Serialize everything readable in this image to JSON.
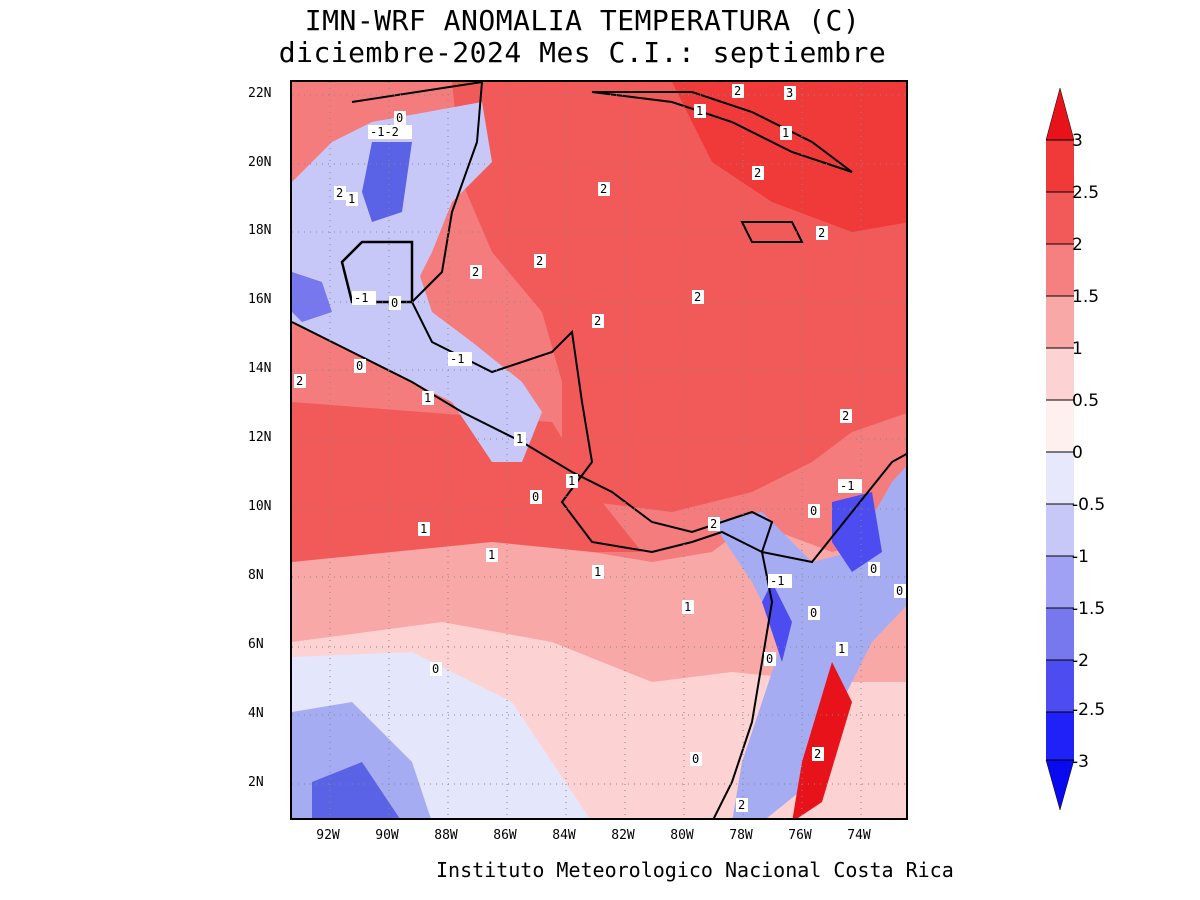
{
  "title": {
    "line1": "IMN-WRF  ANOMALIA TEMPERATURA (C)",
    "line2": "diciembre-2024 Mes C.I.: septiembre"
  },
  "footer": "Instituto Meteorologico Nacional Costa Rica",
  "map": {
    "lat_labels": [
      "22N",
      "20N",
      "18N",
      "16N",
      "14N",
      "12N",
      "10N",
      "8N",
      "6N",
      "4N",
      "2N"
    ],
    "lon_labels": [
      "92W",
      "90W",
      "88W",
      "86W",
      "84W",
      "82W",
      "80W",
      "78W",
      "76W",
      "74W"
    ],
    "contour_labels": [
      "0",
      "-1-2",
      "2",
      "1",
      "2",
      "1",
      "2",
      "3",
      "1",
      "2",
      "2",
      "2",
      "2",
      "-1",
      "0",
      "2",
      "0",
      "-1",
      "2",
      "1",
      "1",
      "2",
      "1",
      "0",
      "-1",
      "1",
      "2",
      "0",
      "1",
      "1",
      "0",
      "-1",
      "0",
      "0",
      "1",
      "0",
      "2",
      "0",
      "0",
      "2",
      "1",
      "2"
    ]
  },
  "colorbar": {
    "labels": [
      "3",
      "2.5",
      "2",
      "1.5",
      "1",
      "0.5",
      "0",
      "-0.5",
      "-1",
      "-1.5",
      "-2",
      "-2.5",
      "-3"
    ],
    "colors": [
      "#e8121a",
      "#f03a3a",
      "#f25a5a",
      "#f68080",
      "#f9a8a8",
      "#fdd2d2",
      "#fff0f0",
      "#e8e8fc",
      "#c8c8f8",
      "#a0a0f4",
      "#7878ee",
      "#4c4cf0",
      "#2020f8",
      "#0a0af0"
    ]
  },
  "colors": {
    "land_outline": "#000000",
    "warm_strong": "#ef4a4a",
    "warm_mid": "#f47c7c",
    "warm_light": "#f8aeae",
    "neutral_warm": "#fde0e0",
    "cool_light": "#e4e6fb",
    "cool_mid": "#a6acf2",
    "cool_strong": "#5a62e6"
  }
}
